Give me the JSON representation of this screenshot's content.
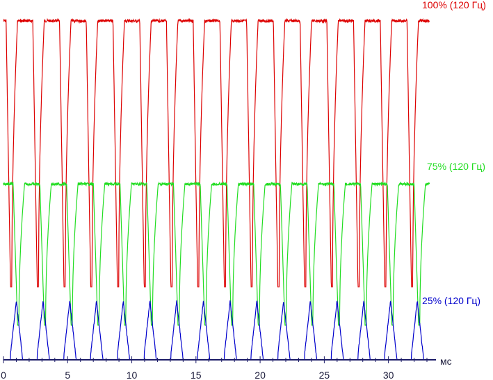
{
  "chart_data": {
    "type": "line",
    "title": "",
    "xlabel": "мс",
    "ylabel": "",
    "xlim": [
      0,
      34
    ],
    "ylim": [
      0,
      100
    ],
    "x_ticks": [
      0,
      5,
      10,
      15,
      20,
      25,
      30
    ],
    "x_tick_labels": [
      "0",
      "5",
      "10",
      "15",
      "20",
      "25",
      "30"
    ],
    "grid": false,
    "legend": "none",
    "period_ms": 2.083,
    "series": [
      {
        "name": "100% (120 Гц)",
        "color": "#dd0000",
        "high": 98,
        "low": 21,
        "pulse_ms": 0.9
      },
      {
        "name": "75% (120 Гц)",
        "color": "#22dd22",
        "high": 51,
        "low": 10,
        "pulse_ms": 0.9
      },
      {
        "name": "25% (120 Гц)",
        "color": "#0000cc",
        "high": 17,
        "low": 0,
        "pulse_ms": 0.9
      }
    ]
  }
}
